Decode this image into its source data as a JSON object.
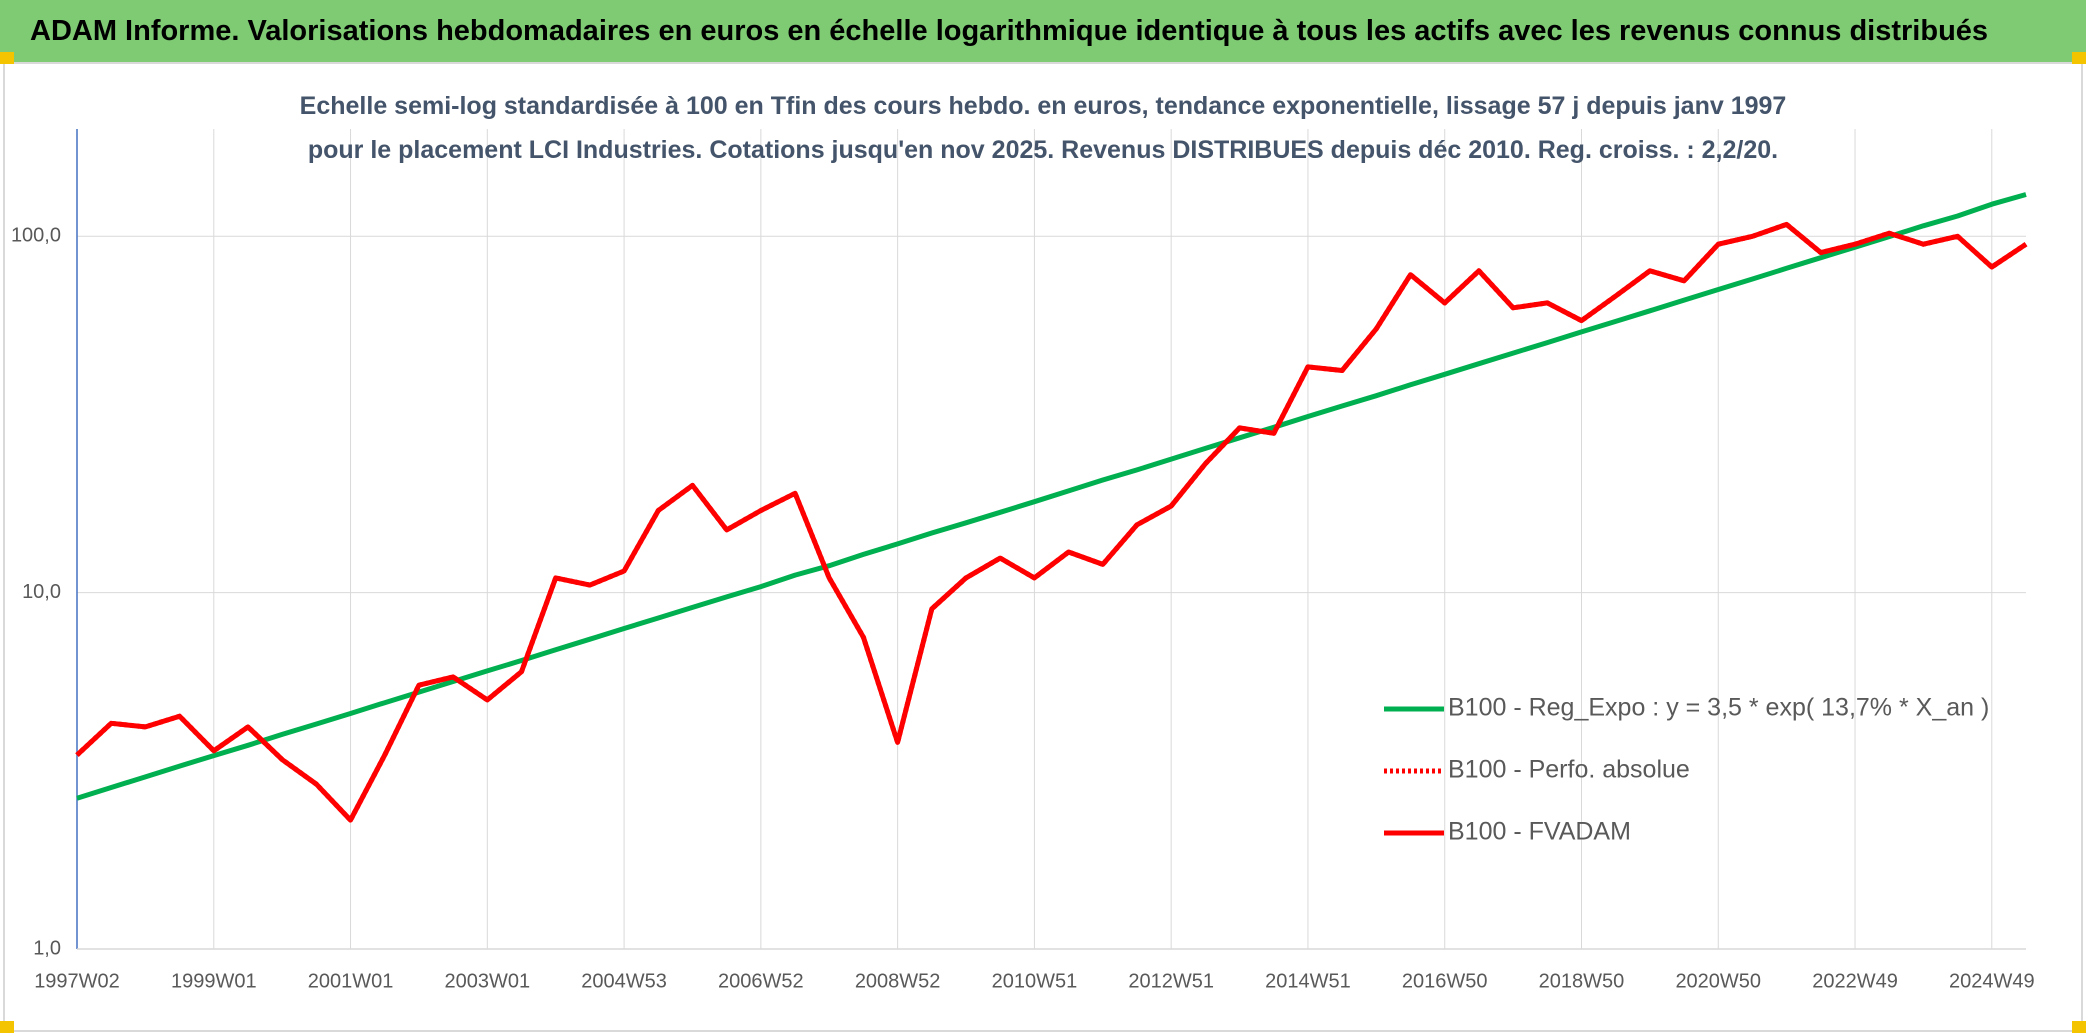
{
  "chart_data": {
    "type": "line",
    "title": "ADAM Informe. Valorisations hebdomadaires en euros en échelle logarithmique identique à tous les actifs avec les revenus connus distribués",
    "subtitle": "Echelle semi-log standardisée à 100 en Tfin des cours hebdo. en euros, tendance exponentielle, lissage 57 j depuis janv 1997 pour le placement LCI Industries. Cotations jusqu'en nov 2025. Revenus DISTRIBUES depuis déc 2010. Reg. croiss. : 2,2/20.",
    "categories": [
      "1997W02",
      null,
      null,
      null,
      "1999W01",
      null,
      null,
      null,
      "2001W01",
      null,
      null,
      null,
      "2003W01",
      null,
      null,
      null,
      "2004W53",
      null,
      null,
      null,
      "2006W52",
      null,
      null,
      null,
      "2008W52",
      null,
      null,
      null,
      "2010W51",
      null,
      null,
      null,
      "2012W51",
      null,
      null,
      null,
      "2014W51",
      null,
      null,
      null,
      "2016W50",
      null,
      null,
      null,
      "2018W50",
      null,
      null,
      null,
      "2020W50",
      null,
      null,
      null,
      "2022W49",
      null,
      null,
      null,
      "2024W49",
      null
    ],
    "series": [
      {
        "name": "B100 - Reg_Expo : y = 3,5 * exp( 13,7% *  X_an )",
        "color": "#00b050",
        "style": "solid",
        "values": [
          2.65,
          2.84,
          3.04,
          3.26,
          3.49,
          3.73,
          4.0,
          4.28,
          4.58,
          4.91,
          5.26,
          5.63,
          6.03,
          6.45,
          6.91,
          7.4,
          7.93,
          8.49,
          9.09,
          9.73,
          10.4,
          11.2,
          11.9,
          12.8,
          13.7,
          14.7,
          15.7,
          16.8,
          18.0,
          19.3,
          20.7,
          22.1,
          23.7,
          25.4,
          27.2,
          29.1,
          31.2,
          33.4,
          35.7,
          38.3,
          41.0,
          43.9,
          47.0,
          50.3,
          53.9,
          57.7,
          61.8,
          66.2,
          70.9,
          75.9,
          81.3,
          87.1,
          93.2,
          99.8,
          107,
          114,
          123,
          131
        ]
      },
      {
        "name": "B100 - Perfo. absolue",
        "color": "#ff0000",
        "style": "dotted",
        "values": [
          3.5,
          4.3,
          4.2,
          4.5,
          3.6,
          4.2,
          3.4,
          2.9,
          2.3,
          3.5,
          5.5,
          5.8,
          5.0,
          6.0,
          11.0,
          10.5,
          11.5,
          17.0,
          20.0,
          15.0,
          17.0,
          19.0,
          11.0,
          7.5,
          3.8,
          9.0,
          11.0,
          12.5,
          11.0,
          13.0,
          12.0,
          15.5,
          17.5,
          23.0,
          29.0,
          28.0,
          43.0,
          42.0,
          55.0,
          78.0,
          65.0,
          80.0,
          63.0,
          65.0,
          58.0,
          68.0,
          80.0,
          75.0,
          95.0,
          100.0,
          108.0,
          90.0,
          95.0,
          102.0,
          95.0,
          100.0,
          82.0,
          95.0
        ]
      },
      {
        "name": "B100 - FVADAM",
        "color": "#ff0000",
        "style": "solid",
        "values": [
          3.5,
          4.3,
          4.2,
          4.5,
          3.6,
          4.2,
          3.4,
          2.9,
          2.3,
          3.5,
          5.5,
          5.8,
          5.0,
          6.0,
          11.0,
          10.5,
          11.5,
          17.0,
          20.0,
          15.0,
          17.0,
          19.0,
          11.0,
          7.5,
          3.8,
          9.0,
          11.0,
          12.5,
          11.0,
          13.0,
          12.0,
          15.5,
          17.5,
          23.0,
          29.0,
          28.0,
          43.0,
          42.0,
          55.0,
          78.0,
          65.0,
          80.0,
          63.0,
          65.0,
          58.0,
          68.0,
          80.0,
          75.0,
          95.0,
          100.0,
          108.0,
          90.0,
          95.0,
          102.0,
          95.0,
          100.0,
          82.0,
          95.0
        ]
      }
    ],
    "ylim": [
      1,
      200
    ],
    "yticks": [
      {
        "value": 1,
        "label": "1,0"
      },
      {
        "value": 10,
        "label": "10,0"
      },
      {
        "value": 100,
        "label": "100,0"
      }
    ],
    "log_scale": true,
    "grid": true,
    "legend": "bottom-right"
  }
}
